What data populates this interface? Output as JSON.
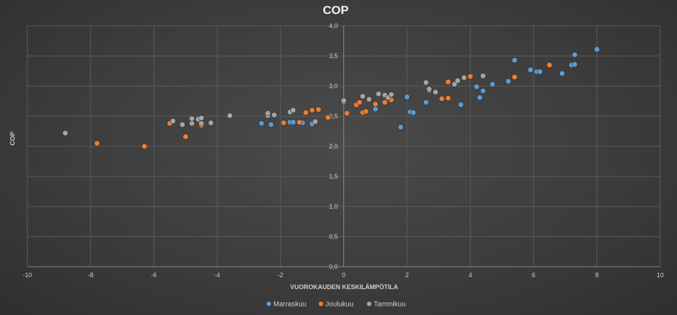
{
  "chart_data": {
    "type": "scatter",
    "title": "COP",
    "xlabel": "VUOROKAUDEN KESKILÄMPÖTILA",
    "ylabel": "COP",
    "xlim": [
      -10,
      10
    ],
    "ylim": [
      0,
      4
    ],
    "x_ticks": [
      "-10",
      "-8",
      "-6",
      "-4",
      "-2",
      "0",
      "2",
      "4",
      "6",
      "8",
      "10"
    ],
    "y_ticks": [
      "0,0",
      "0,5",
      "1,0",
      "1,5",
      "2,0",
      "2,5",
      "3,0",
      "3,5",
      "4,0"
    ],
    "grid": true,
    "legend_position": "bottom",
    "series": [
      {
        "name": "Marraskuu",
        "color": "#5b9bd5",
        "points": [
          [
            -2.6,
            2.38
          ],
          [
            -2.3,
            2.36
          ],
          [
            -1.7,
            2.4
          ],
          [
            -1.6,
            2.4
          ],
          [
            -1.3,
            2.39
          ],
          [
            -1.0,
            2.37
          ],
          [
            1.0,
            2.62
          ],
          [
            1.8,
            2.32
          ],
          [
            2.0,
            2.82
          ],
          [
            2.1,
            2.57
          ],
          [
            2.2,
            2.56
          ],
          [
            2.6,
            2.73
          ],
          [
            3.7,
            2.69
          ],
          [
            4.2,
            2.99
          ],
          [
            4.3,
            2.81
          ],
          [
            4.4,
            2.92
          ],
          [
            4.7,
            3.03
          ],
          [
            5.2,
            3.08
          ],
          [
            5.4,
            3.43
          ],
          [
            5.9,
            3.27
          ],
          [
            6.1,
            3.24
          ],
          [
            6.2,
            3.24
          ],
          [
            6.9,
            3.21
          ],
          [
            7.2,
            3.35
          ],
          [
            7.3,
            3.36
          ],
          [
            7.3,
            3.52
          ],
          [
            8.0,
            3.61
          ]
        ]
      },
      {
        "name": "Joulukuu",
        "color": "#ed7d31",
        "points": [
          [
            -7.8,
            2.05
          ],
          [
            -6.3,
            2.0
          ],
          [
            -5.5,
            2.38
          ],
          [
            -5.0,
            2.16
          ],
          [
            -4.5,
            2.35
          ],
          [
            -1.9,
            2.39
          ],
          [
            -1.4,
            2.4
          ],
          [
            -1.2,
            2.56
          ],
          [
            -1.0,
            2.6
          ],
          [
            -0.8,
            2.61
          ],
          [
            -0.5,
            2.48
          ],
          [
            0.1,
            2.55
          ],
          [
            0.4,
            2.69
          ],
          [
            0.5,
            2.73
          ],
          [
            0.6,
            2.56
          ],
          [
            0.7,
            2.58
          ],
          [
            1.0,
            2.7
          ],
          [
            1.3,
            2.73
          ],
          [
            1.5,
            2.77
          ],
          [
            2.7,
            2.93
          ],
          [
            3.1,
            2.79
          ],
          [
            3.3,
            2.8
          ],
          [
            3.3,
            3.07
          ],
          [
            4.0,
            3.16
          ],
          [
            5.4,
            3.15
          ],
          [
            6.5,
            3.35
          ]
        ]
      },
      {
        "name": "Tammikuu",
        "color": "#a5a5a5",
        "points": [
          [
            -8.8,
            2.22
          ],
          [
            -5.4,
            2.42
          ],
          [
            -5.1,
            2.36
          ],
          [
            -4.8,
            2.38
          ],
          [
            -4.8,
            2.46
          ],
          [
            -4.6,
            2.45
          ],
          [
            -4.5,
            2.47
          ],
          [
            -4.5,
            2.38
          ],
          [
            -4.2,
            2.39
          ],
          [
            -3.6,
            2.51
          ],
          [
            -2.4,
            2.51
          ],
          [
            -2.4,
            2.55
          ],
          [
            -2.2,
            2.52
          ],
          [
            -1.7,
            2.57
          ],
          [
            -1.6,
            2.6
          ],
          [
            -0.9,
            2.41
          ],
          [
            0.0,
            2.74
          ],
          [
            0.0,
            2.76
          ],
          [
            0.6,
            2.83
          ],
          [
            0.8,
            2.78
          ],
          [
            1.1,
            2.87
          ],
          [
            1.3,
            2.85
          ],
          [
            1.4,
            2.81
          ],
          [
            1.5,
            2.86
          ],
          [
            2.6,
            3.06
          ],
          [
            2.7,
            2.95
          ],
          [
            2.9,
            2.9
          ],
          [
            3.5,
            3.03
          ],
          [
            3.6,
            3.09
          ],
          [
            3.8,
            3.14
          ],
          [
            4.4,
            3.17
          ]
        ]
      }
    ]
  }
}
